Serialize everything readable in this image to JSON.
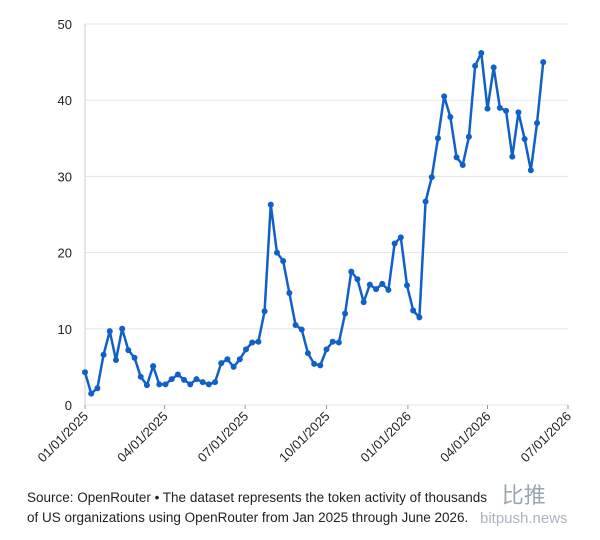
{
  "chart_data": {
    "type": "line",
    "x": [
      "2025-01-01",
      "2025-01-08",
      "2025-01-15",
      "2025-01-22",
      "2025-01-29",
      "2025-02-05",
      "2025-02-12",
      "2025-02-19",
      "2025-02-26",
      "2025-03-05",
      "2025-03-12",
      "2025-03-19",
      "2025-03-26",
      "2025-04-02",
      "2025-04-09",
      "2025-04-16",
      "2025-04-23",
      "2025-04-30",
      "2025-05-07",
      "2025-05-14",
      "2025-05-21",
      "2025-05-28",
      "2025-06-04",
      "2025-06-11",
      "2025-06-18",
      "2025-06-25",
      "2025-07-02",
      "2025-07-09",
      "2025-07-16",
      "2025-07-23",
      "2025-07-30",
      "2025-08-06",
      "2025-08-13",
      "2025-08-20",
      "2025-08-27",
      "2025-09-03",
      "2025-09-10",
      "2025-09-17",
      "2025-09-24",
      "2025-10-01",
      "2025-10-08",
      "2025-10-15",
      "2025-10-22",
      "2025-10-29",
      "2025-11-05",
      "2025-11-12",
      "2025-11-19",
      "2025-11-26",
      "2025-12-03",
      "2025-12-10",
      "2025-12-17",
      "2025-12-24",
      "2025-12-31",
      "2026-01-07",
      "2026-01-14",
      "2026-01-21",
      "2026-01-28",
      "2026-02-04",
      "2026-02-11",
      "2026-02-18",
      "2026-02-25",
      "2026-03-04",
      "2026-03-11",
      "2026-03-18",
      "2026-03-25",
      "2026-04-01",
      "2026-04-08",
      "2026-04-15",
      "2026-04-22",
      "2026-04-29",
      "2026-05-06",
      "2026-05-13",
      "2026-05-20",
      "2026-05-27",
      "2026-06-03"
    ],
    "series": [
      {
        "name": "Token activity",
        "color": "#1060c8",
        "values": [
          4.3,
          1.5,
          2.2,
          6.6,
          9.7,
          5.9,
          10.0,
          7.2,
          6.2,
          3.7,
          2.6,
          5.1,
          2.7,
          2.7,
          3.4,
          4.0,
          3.3,
          2.7,
          3.4,
          3.0,
          2.7,
          3.0,
          5.5,
          6.0,
          5.0,
          6.0,
          7.3,
          8.2,
          8.3,
          12.3,
          26.3,
          20.0,
          18.9,
          14.7,
          10.5,
          9.9,
          6.8,
          5.4,
          5.2,
          7.3,
          8.3,
          8.2,
          12.0,
          17.5,
          16.5,
          13.5,
          15.8,
          15.2,
          15.9,
          15.1,
          21.2,
          22.0,
          15.7,
          12.4,
          11.5,
          26.7,
          29.9,
          35.0,
          40.5,
          37.8,
          32.5,
          31.5,
          35.2,
          44.5,
          46.2,
          38.9,
          44.3,
          39.0,
          38.6,
          32.6,
          38.4,
          34.9,
          30.8,
          37.0,
          45.0
        ]
      }
    ],
    "xlim": [
      "2025-01-01",
      "2026-07-01"
    ],
    "xticks": [
      {
        "value": "2025-01-01",
        "label": "01/01/2025"
      },
      {
        "value": "2025-04-01",
        "label": "04/01/2025"
      },
      {
        "value": "2025-07-01",
        "label": "07/01/2025"
      },
      {
        "value": "2025-10-01",
        "label": "10/01/2025"
      },
      {
        "value": "2026-01-01",
        "label": "01/01/2026"
      },
      {
        "value": "2026-04-01",
        "label": "04/01/2026"
      },
      {
        "value": "2026-07-01",
        "label": "07/01/2026"
      }
    ],
    "ylim": [
      0,
      50
    ],
    "yticks": [
      0,
      10,
      20,
      30,
      40,
      50
    ],
    "grid": true,
    "caption": "Source: OpenRouter • The dataset represents the token activity of thousands of US organizations using OpenRouter from Jan 2025 through June 2026.",
    "watermark": {
      "mark": "比推",
      "site": "bitpush.news"
    }
  }
}
